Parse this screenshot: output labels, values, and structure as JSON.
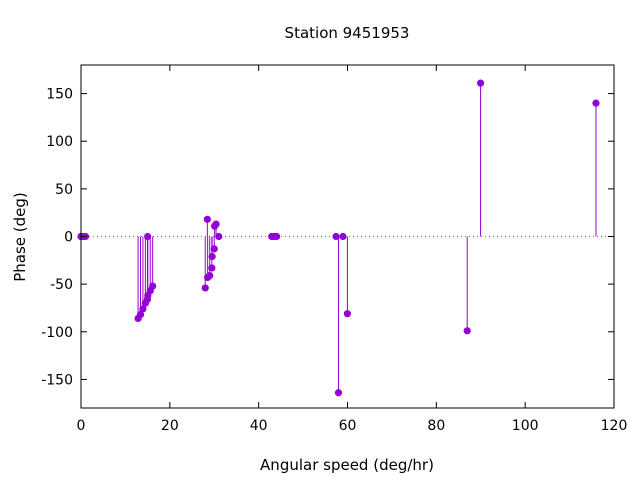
{
  "chart_data": {
    "type": "scatter",
    "style": "impulses-with-points",
    "title": "Station 9451953",
    "xlabel": "Angular speed (deg/hr)",
    "ylabel": "Phase (deg)",
    "xlim": [
      0,
      120
    ],
    "ylim": [
      -180,
      180
    ],
    "xticks": [
      0,
      20,
      40,
      60,
      80,
      100,
      120
    ],
    "yticks": [
      -150,
      -100,
      -50,
      0,
      50,
      100,
      150
    ],
    "xtick_labels": [
      "0",
      "20",
      "40",
      "60",
      "80",
      "100",
      "120"
    ],
    "ytick_labels": [
      "-150",
      "-100",
      "-50",
      "0",
      "50",
      "100",
      "150"
    ],
    "zero_line": "dotted",
    "grid": false,
    "color": "#9400d3",
    "x": [
      0.0,
      0.04,
      0.08,
      0.54,
      1.02,
      12.85,
      13.4,
      13.94,
      14.49,
      14.96,
      15.0,
      15.04,
      15.59,
      16.14,
      27.97,
      28.44,
      28.51,
      28.98,
      29.46,
      29.53,
      30.0,
      30.08,
      30.41,
      31.02,
      42.93,
      43.48,
      44.03,
      57.42,
      57.97,
      58.98,
      59.98,
      86.95,
      89.96,
      115.94
    ],
    "y": [
      0,
      0,
      0,
      0,
      0,
      -86,
      -82,
      -76,
      -70,
      -66,
      0,
      -62,
      -57,
      -52,
      -54,
      18,
      -43,
      -41,
      -33,
      -21,
      -13,
      11,
      13,
      0,
      0,
      0,
      0,
      0,
      -164,
      0,
      -81,
      -99,
      161,
      140
    ]
  }
}
